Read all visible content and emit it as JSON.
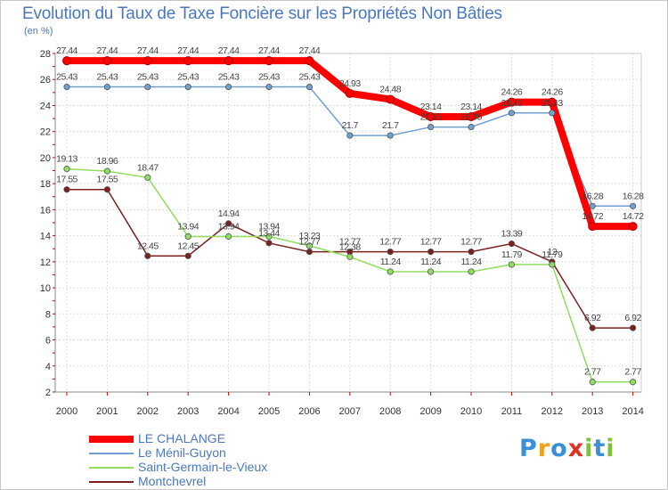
{
  "chart_data": {
    "type": "line",
    "title": "Evolution du Taux de Taxe Foncière sur les Propriétés Non Bâties",
    "ylabel": "(en %)",
    "xlabel": "",
    "x": [
      "2000",
      "2001",
      "2002",
      "2003",
      "2004",
      "2005",
      "2006",
      "2007",
      "2008",
      "2009",
      "2010",
      "2011",
      "2012",
      "2013",
      "2014"
    ],
    "ylim": [
      2,
      28
    ],
    "yticks": [
      2,
      4,
      6,
      8,
      10,
      12,
      14,
      16,
      18,
      20,
      22,
      24,
      26,
      28
    ],
    "grid": true,
    "legend_position": "bottom-left",
    "series": [
      {
        "name": "LE CHALANGE",
        "color": "#ff0000",
        "values": [
          27.44,
          27.44,
          27.44,
          27.44,
          27.44,
          27.44,
          27.44,
          24.93,
          24.48,
          23.14,
          23.14,
          24.26,
          24.26,
          14.72,
          14.72
        ],
        "labels": [
          "27.44",
          "27.44",
          "27.44",
          "27.44",
          "27.44",
          "27.44",
          "27.44",
          "24.93",
          "24.48",
          "23.14",
          "23.14",
          "24.26",
          "24.26",
          "14.72",
          "14.72"
        ]
      },
      {
        "name": "Le Ménil-Guyon",
        "color": "#6fa0d0",
        "values": [
          25.43,
          25.43,
          25.43,
          25.43,
          25.43,
          25.43,
          25.43,
          21.7,
          21.7,
          22.35,
          22.35,
          23.43,
          23.43,
          16.28,
          16.28
        ],
        "labels": [
          "25.43",
          "25.43",
          "25.43",
          "25.43",
          "25.43",
          "25.43",
          "25.43",
          "21.7",
          "21.7",
          "22.35",
          "22.35",
          "23.43",
          "23.43",
          "16.28",
          "16.28"
        ]
      },
      {
        "name": "Saint-Germain-le-Vieux",
        "color": "#90dd60",
        "values": [
          19.13,
          18.96,
          18.47,
          13.94,
          13.94,
          13.94,
          13.23,
          12.38,
          11.24,
          11.24,
          11.24,
          11.79,
          11.79,
          2.77,
          2.77
        ],
        "labels": [
          "19.13",
          "18.96",
          "18.47",
          "13.94",
          "13.94",
          "13.94",
          "13.23",
          "12.38",
          "11.24",
          "11.24",
          "11.24",
          "11.79",
          "11.79",
          "2.77",
          "2.77"
        ]
      },
      {
        "name": "Montchevrel",
        "color": "#7a2020",
        "values": [
          17.55,
          17.55,
          12.45,
          12.45,
          14.94,
          13.44,
          12.77,
          12.77,
          12.77,
          12.77,
          12.77,
          13.39,
          12,
          6.92,
          6.92
        ],
        "labels": [
          "17.55",
          "17.55",
          "12.45",
          "12.45",
          "14.94",
          "13.44",
          "12.77",
          "12.77",
          "12.77",
          "12.77",
          "12.77",
          "13.39",
          "12",
          "6.92",
          "6.92"
        ]
      }
    ]
  },
  "logo": {
    "text": "Proxiti",
    "letters": [
      "P",
      "r",
      "o",
      "x",
      "i",
      "t",
      "i"
    ],
    "colors": [
      "#3a8fd8",
      "#f0a020",
      "#3a8fd8",
      "#e03020",
      "#80c040",
      "#3a8fd8",
      "#80c040"
    ]
  }
}
